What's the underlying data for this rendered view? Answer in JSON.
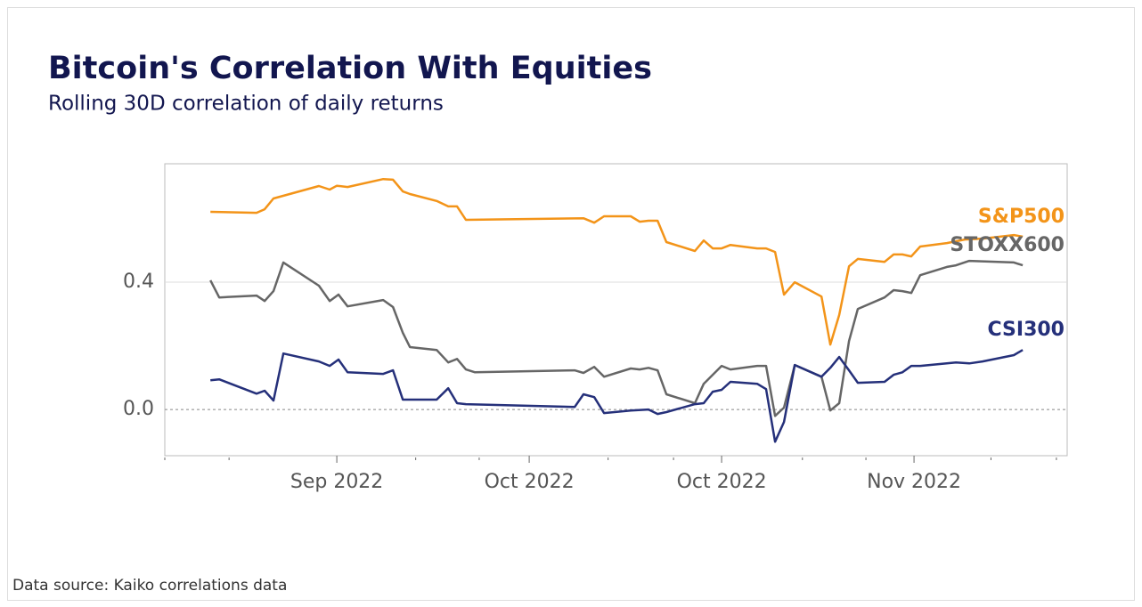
{
  "chart_data": {
    "type": "line",
    "title": "Bitcoin's Correlation With Equities",
    "subtitle": "Rolling 30D correlation of daily returns",
    "source": "Data source: Kaiko correlations data",
    "xlim": [
      1.06,
      47.96
    ],
    "xticks": [
      {
        "value": 10,
        "label": "Sep 2022"
      },
      {
        "value": 20,
        "label": "Oct 2022"
      },
      {
        "value": 30,
        "label": "Oct 2022"
      },
      {
        "value": 40,
        "label": "Nov 2022"
      }
    ],
    "xminorticks": [
      1.06,
      4.4,
      14.1,
      17.4,
      24.1,
      27.5,
      34.2,
      37.5,
      44.0,
      47.4
    ],
    "ylim": [
      -0.145,
      0.772
    ],
    "yticks": [
      {
        "value": 0,
        "label": "0.0"
      },
      0.4
    ],
    "grid": true,
    "series": [
      {
        "name": "S&P500",
        "color": "#f39419",
        "x": [
          3.43,
          5.83,
          6.25,
          6.71,
          9.07,
          9.63,
          10.0,
          10.56,
          12.41,
          12.92,
          13.43,
          13.8,
          15.19,
          15.79,
          16.25,
          16.71,
          22.82,
          23.38,
          23.89,
          25.28,
          25.74,
          26.2,
          26.67,
          27.13,
          28.61,
          29.07,
          29.54,
          30.0,
          30.46,
          31.85,
          32.31,
          32.78,
          33.24,
          33.8,
          35.19,
          35.65,
          36.11,
          36.62,
          37.08,
          38.47,
          38.94,
          39.4,
          39.86,
          40.32,
          41.71,
          42.64,
          43.56,
          45.19,
          45.65
        ],
        "values": [
          0.621,
          0.618,
          0.629,
          0.663,
          0.702,
          0.691,
          0.703,
          0.699,
          0.724,
          0.722,
          0.685,
          0.677,
          0.655,
          0.638,
          0.638,
          0.596,
          0.601,
          0.587,
          0.607,
          0.607,
          0.59,
          0.593,
          0.593,
          0.526,
          0.498,
          0.531,
          0.506,
          0.506,
          0.517,
          0.506,
          0.506,
          0.495,
          0.361,
          0.4,
          0.355,
          0.204,
          0.297,
          0.45,
          0.473,
          0.464,
          0.487,
          0.487,
          0.481,
          0.512,
          0.523,
          0.534,
          0.537,
          0.548,
          0.543
        ]
      },
      {
        "name": "STOXX600",
        "color": "#666666",
        "x": [
          3.43,
          3.89,
          5.83,
          6.25,
          6.71,
          7.22,
          9.07,
          9.63,
          10.09,
          10.56,
          12.41,
          12.92,
          13.43,
          13.8,
          15.19,
          15.79,
          16.25,
          16.71,
          17.18,
          22.36,
          22.82,
          23.38,
          23.89,
          25.28,
          25.74,
          26.2,
          26.67,
          27.13,
          28.61,
          29.07,
          30.0,
          30.46,
          31.85,
          32.31,
          32.78,
          33.24,
          33.8,
          35.19,
          35.65,
          36.11,
          36.62,
          37.08,
          38.47,
          38.94,
          39.4,
          39.86,
          40.32,
          41.71,
          42.18,
          42.87,
          45.19,
          45.65
        ],
        "values": [
          0.406,
          0.352,
          0.358,
          0.341,
          0.372,
          0.462,
          0.389,
          0.341,
          0.361,
          0.324,
          0.344,
          0.322,
          0.241,
          0.196,
          0.187,
          0.148,
          0.159,
          0.126,
          0.117,
          0.123,
          0.115,
          0.134,
          0.103,
          0.129,
          0.126,
          0.131,
          0.123,
          0.048,
          0.02,
          0.081,
          0.137,
          0.126,
          0.137,
          0.137,
          -0.02,
          0.006,
          0.14,
          0.103,
          -0.003,
          0.02,
          0.215,
          0.316,
          0.352,
          0.375,
          0.372,
          0.366,
          0.422,
          0.448,
          0.453,
          0.467,
          0.462,
          0.453
        ]
      },
      {
        "name": "CSI300",
        "color": "#25307a",
        "x": [
          3.43,
          3.89,
          5.83,
          6.25,
          6.71,
          7.22,
          9.07,
          9.63,
          10.09,
          10.56,
          12.41,
          12.92,
          13.43,
          15.19,
          15.79,
          16.25,
          16.71,
          22.36,
          22.82,
          23.38,
          23.89,
          25.28,
          26.2,
          26.67,
          27.13,
          28.61,
          29.07,
          29.54,
          30.0,
          30.46,
          31.85,
          32.31,
          32.78,
          33.24,
          33.8,
          35.19,
          35.65,
          36.11,
          36.62,
          37.08,
          38.47,
          38.94,
          39.4,
          39.86,
          40.32,
          42.18,
          42.87,
          43.56,
          45.19,
          45.65
        ],
        "values": [
          0.092,
          0.095,
          0.05,
          0.059,
          0.028,
          0.176,
          0.151,
          0.137,
          0.157,
          0.117,
          0.112,
          0.123,
          0.031,
          0.031,
          0.067,
          0.02,
          0.017,
          0.008,
          0.048,
          0.039,
          -0.011,
          -0.003,
          0,
          -0.014,
          -0.008,
          0.017,
          0.02,
          0.056,
          0.062,
          0.087,
          0.081,
          0.064,
          -0.101,
          -0.039,
          0.14,
          0.103,
          0.131,
          0.165,
          0.123,
          0.084,
          0.087,
          0.109,
          0.117,
          0.137,
          0.137,
          0.148,
          0.145,
          0.151,
          0.171,
          0.187
        ]
      }
    ]
  }
}
